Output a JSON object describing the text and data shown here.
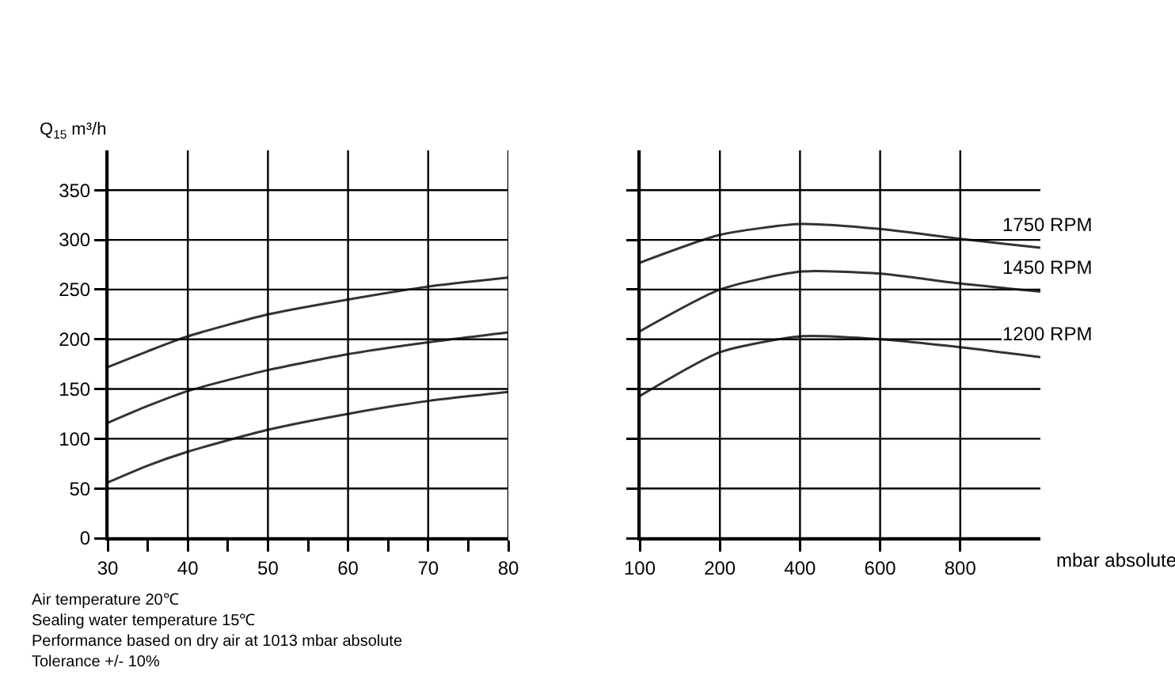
{
  "chart_data": [
    {
      "type": "line",
      "ylabel": "Q$_{15}$ m³/h",
      "x": [
        30,
        35,
        40,
        50,
        60,
        70,
        80
      ],
      "xlim": [
        30,
        80
      ],
      "xticks": [
        30,
        {
          "value": 35,
          "label": null
        },
        40,
        {
          "value": 45,
          "label": null
        },
        50,
        {
          "value": 55,
          "label": null
        },
        60,
        {
          "value": 65,
          "label": null
        },
        70,
        {
          "value": 75,
          "label": null
        },
        80
      ],
      "ylim": [
        0,
        390
      ],
      "yticks": [
        0,
        50,
        100,
        150,
        200,
        250,
        300,
        350
      ],
      "grid": true,
      "series": [
        {
          "color": "#333333",
          "values": [
            172,
            188,
            203,
            225,
            240,
            253,
            262
          ]
        },
        {
          "color": "#333333",
          "values": [
            116,
            133,
            148,
            169,
            185,
            197,
            207
          ]
        },
        {
          "color": "#333333",
          "values": [
            56,
            73,
            87,
            109,
            125,
            138,
            147
          ]
        }
      ],
      "annotations": [
        "Air temperature 20℃",
        "Sealing water temperature 15℃",
        "Performance based on dry air at 1013 mbar absolute",
        "Tolerance +/- 10%"
      ]
    },
    {
      "type": "line",
      "xlabel": "mbar absolute",
      "categories": [
        "100",
        "200",
        "400",
        "600",
        "800",
        null
      ],
      "ylim": [
        0,
        390
      ],
      "yticks": [
        0,
        50,
        100,
        150,
        200,
        250,
        300,
        350
      ],
      "grid": true,
      "tick_labels": "x",
      "series": [
        {
          "name": "1750 RPM",
          "color": "#333333",
          "values": [
            277,
            305,
            316,
            311,
            301,
            292
          ]
        },
        {
          "name": "1450 RPM",
          "color": "#333333",
          "values": [
            208,
            250,
            268,
            266,
            256,
            248
          ]
        },
        {
          "name": "1200 RPM",
          "color": "#333333",
          "values": [
            143,
            187,
            203,
            200,
            192,
            182
          ]
        }
      ]
    }
  ]
}
